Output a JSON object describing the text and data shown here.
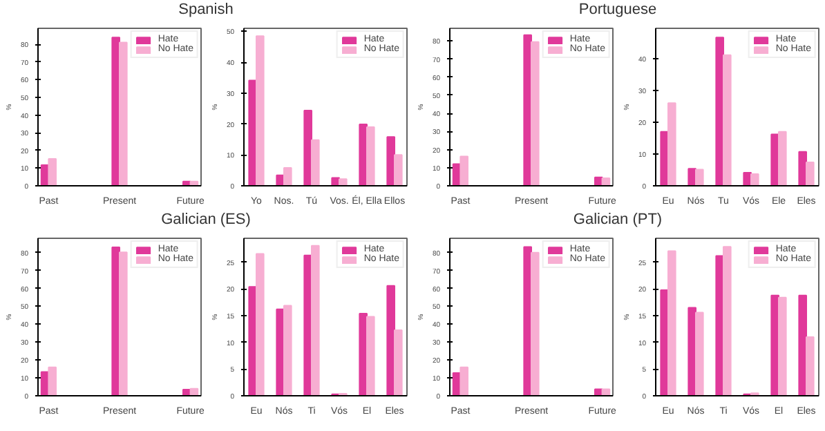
{
  "chart_data": [
    {
      "type": "bar",
      "title": "Spanish",
      "categories": [
        "Past",
        "Present",
        "Future"
      ],
      "ylabel": "%",
      "ylim": [
        0,
        89
      ],
      "yticks": [
        0,
        10,
        20,
        30,
        40,
        50,
        60,
        70,
        80
      ],
      "grid": false,
      "legend": "top right",
      "series": [
        {
          "name": "Hate",
          "color": "#e0399a",
          "values": [
            11.7,
            83.8,
            2.4
          ]
        },
        {
          "name": "No Hate",
          "color": "#f7aed2",
          "values": [
            15.2,
            81,
            2.4
          ]
        }
      ]
    },
    {
      "type": "bar",
      "categories": [
        "Yo",
        "Nos.",
        "Tú",
        "Vos.",
        "Él, Ella",
        "Ellos"
      ],
      "ylabel": "%",
      "ylim": [
        0,
        51
      ],
      "yticks": [
        0,
        10,
        20,
        30,
        40,
        50
      ],
      "grid": false,
      "legend": "top right",
      "series": [
        {
          "name": "Hate",
          "color": "#e0399a",
          "values": [
            34.1,
            3.4,
            24.4,
            2.6,
            19.9,
            15.8
          ]
        },
        {
          "name": "No Hate",
          "color": "#f7aed2",
          "values": [
            48.5,
            5.8,
            14.8,
            2.2,
            19,
            10
          ]
        }
      ]
    },
    {
      "type": "bar",
      "title": "Portuguese",
      "categories": [
        "Past",
        "Present",
        "Future"
      ],
      "ylabel": "%",
      "ylim": [
        0,
        87
      ],
      "yticks": [
        0,
        10,
        20,
        30,
        40,
        50,
        60,
        70,
        80
      ],
      "grid": false,
      "legend": "top right",
      "series": [
        {
          "name": "Hate",
          "color": "#e0399a",
          "values": [
            12,
            83.3,
            4.7
          ]
        },
        {
          "name": "No Hate",
          "color": "#f7aed2",
          "values": [
            16.2,
            79.5,
            4.2
          ]
        }
      ]
    },
    {
      "type": "bar",
      "categories": [
        "Eu",
        "Nós",
        "Tu",
        "Vós",
        "Ele",
        "Eles"
      ],
      "ylabel": "%",
      "ylim": [
        0,
        49.5
      ],
      "yticks": [
        0,
        10,
        20,
        30,
        40
      ],
      "grid": false,
      "legend": "top right",
      "series": [
        {
          "name": "Hate",
          "color": "#e0399a",
          "values": [
            17,
            5.4,
            46.6,
            4.1,
            16.2,
            10.7
          ]
        },
        {
          "name": "No Hate",
          "color": "#f7aed2",
          "values": [
            26,
            5.1,
            41.1,
            3.7,
            17,
            7.4
          ]
        }
      ]
    },
    {
      "type": "bar",
      "title": "Galician (ES)",
      "categories": [
        "Past",
        "Present",
        "Future"
      ],
      "ylabel": "%",
      "ylim": [
        0,
        88
      ],
      "yticks": [
        0,
        10,
        20,
        30,
        40,
        50,
        60,
        70,
        80
      ],
      "grid": false,
      "legend": "top right",
      "series": [
        {
          "name": "Hate",
          "color": "#e0399a",
          "values": [
            13.3,
            83,
            3.5
          ]
        },
        {
          "name": "No Hate",
          "color": "#f7aed2",
          "values": [
            15.9,
            80.2,
            4
          ]
        }
      ]
    },
    {
      "type": "bar",
      "categories": [
        "Eu",
        "Nós",
        "Ti",
        "Vós",
        "El",
        "Eles"
      ],
      "ylabel": "%",
      "ylim": [
        0,
        29.5
      ],
      "yticks": [
        0,
        5,
        10,
        15,
        20,
        25
      ],
      "grid": false,
      "legend": "top right",
      "series": [
        {
          "name": "Hate",
          "color": "#e0399a",
          "values": [
            20.4,
            16.2,
            26.3,
            0.3,
            15.4,
            20.6
          ]
        },
        {
          "name": "No Hate",
          "color": "#f7aed2",
          "values": [
            26.6,
            16.9,
            28.1,
            0.4,
            14.8,
            12.3
          ]
        }
      ]
    },
    {
      "type": "bar",
      "title": "Galician (PT)",
      "categories": [
        "Past",
        "Present",
        "Future"
      ],
      "ylabel": "%",
      "ylim": [
        0,
        88
      ],
      "yticks": [
        0,
        10,
        20,
        30,
        40,
        50,
        60,
        70,
        80
      ],
      "grid": false,
      "legend": "top right",
      "series": [
        {
          "name": "Hate",
          "color": "#e0399a",
          "values": [
            12.7,
            83.2,
            3.7
          ]
        },
        {
          "name": "No Hate",
          "color": "#f7aed2",
          "values": [
            15.9,
            80,
            3.7
          ]
        }
      ]
    },
    {
      "type": "bar",
      "categories": [
        "Eu",
        "Nós",
        "Ti",
        "Vós",
        "El",
        "Eles"
      ],
      "ylabel": "%",
      "ylim": [
        0,
        29.5
      ],
      "yticks": [
        0,
        5,
        10,
        15,
        20,
        25
      ],
      "grid": false,
      "legend": "top right",
      "series": [
        {
          "name": "Hate",
          "color": "#e0399a",
          "values": [
            19.8,
            16.5,
            26.2,
            0.3,
            18.8,
            18.8
          ]
        },
        {
          "name": "No Hate",
          "color": "#f7aed2",
          "values": [
            27.1,
            15.6,
            27.9,
            0.5,
            18.4,
            11
          ]
        }
      ]
    }
  ]
}
